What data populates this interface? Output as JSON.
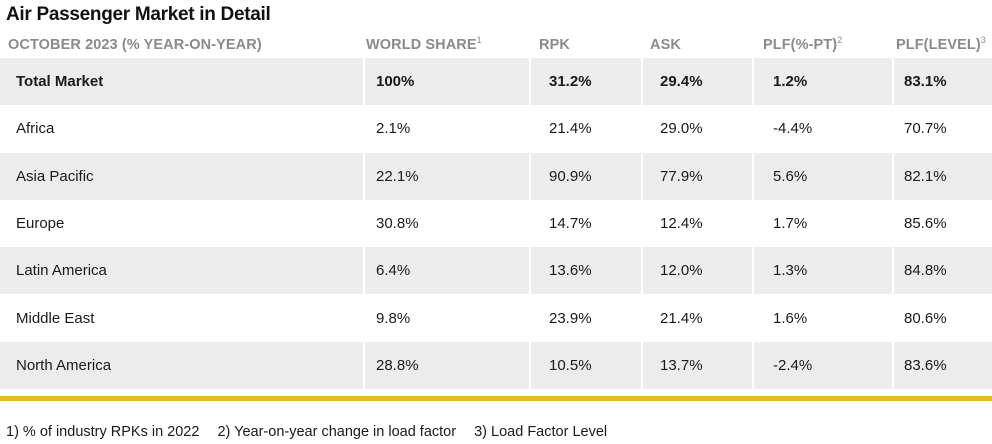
{
  "title": "Air Passenger Market in Detail",
  "headers": [
    {
      "label": "OCTOBER 2023 (% YEAR-ON-YEAR)",
      "sup": ""
    },
    {
      "label": "WORLD SHARE",
      "sup": "1"
    },
    {
      "label": "RPK",
      "sup": ""
    },
    {
      "label": "ASK",
      "sup": ""
    },
    {
      "label": "PLF(%-PT)",
      "sup": "2"
    },
    {
      "label": "PLF(LEVEL)",
      "sup": "3"
    }
  ],
  "rows": [
    [
      "Total Market",
      "100%",
      "31.2%",
      "29.4%",
      "1.2%",
      "83.1%"
    ],
    [
      "Africa",
      "2.1%",
      "21.4%",
      "29.0%",
      "-4.4%",
      "70.7%"
    ],
    [
      "Asia Pacific",
      "22.1%",
      "90.9%",
      "77.9%",
      "5.6%",
      "82.1%"
    ],
    [
      "Europe",
      "30.8%",
      "14.7%",
      "12.4%",
      "1.7%",
      "85.6%"
    ],
    [
      "Latin America",
      "6.4%",
      "13.6%",
      "12.0%",
      "1.3%",
      "84.8%"
    ],
    [
      "Middle East",
      "9.8%",
      "23.9%",
      "21.4%",
      "1.6%",
      "80.6%"
    ],
    [
      "North America",
      "28.8%",
      "10.5%",
      "13.7%",
      "-2.4%",
      "83.6%"
    ]
  ],
  "footnotes": [
    "1) % of industry RPKs in 2022",
    "2) Year-on-year change in load factor",
    "3) Load Factor Level"
  ],
  "colors": {
    "accent_bar": "#e8b820",
    "row_shade": "#ececec",
    "header_text": "#8a8a8a"
  }
}
